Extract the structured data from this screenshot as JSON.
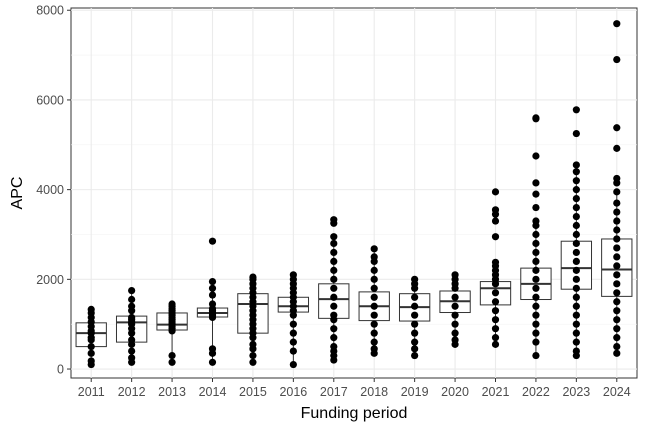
{
  "chart_data": {
    "type": "box",
    "xlabel": "Funding period",
    "ylabel": "APC",
    "ylim": [
      -200,
      8050
    ],
    "yticks": [
      0,
      2000,
      4000,
      6000,
      8000
    ],
    "grid": true,
    "categories": [
      "2011",
      "2012",
      "2013",
      "2014",
      "2015",
      "2016",
      "2017",
      "2018",
      "2019",
      "2020",
      "2021",
      "2022",
      "2023",
      "2024"
    ],
    "boxes": [
      {
        "category": "2011",
        "whisker_low": 100,
        "q1": 500,
        "median": 800,
        "q3": 1030,
        "whisker_high": 1330
      },
      {
        "category": "2012",
        "whisker_low": 150,
        "q1": 600,
        "median": 1040,
        "q3": 1180,
        "whisker_high": 1750
      },
      {
        "category": "2013",
        "whisker_low": 150,
        "q1": 870,
        "median": 990,
        "q3": 1250,
        "whisker_high": 1450
      },
      {
        "category": "2014",
        "whisker_low": 150,
        "q1": 1160,
        "median": 1250,
        "q3": 1360,
        "whisker_high": 1950
      },
      {
        "category": "2015",
        "whisker_low": 150,
        "q1": 800,
        "median": 1450,
        "q3": 1680,
        "whisker_high": 2050
      },
      {
        "category": "2016",
        "whisker_low": 100,
        "q1": 1270,
        "median": 1400,
        "q3": 1600,
        "whisker_high": 2100
      },
      {
        "category": "2017",
        "whisker_low": 200,
        "q1": 1130,
        "median": 1560,
        "q3": 1900,
        "whisker_high": 2950
      },
      {
        "category": "2018",
        "whisker_low": 350,
        "q1": 1080,
        "median": 1400,
        "q3": 1720,
        "whisker_high": 2680
      },
      {
        "category": "2019",
        "whisker_low": 300,
        "q1": 1070,
        "median": 1380,
        "q3": 1680,
        "whisker_high": 2000
      },
      {
        "category": "2020",
        "whisker_low": 550,
        "q1": 1260,
        "median": 1510,
        "q3": 1740,
        "whisker_high": 2100
      },
      {
        "category": "2021",
        "whisker_low": 550,
        "q1": 1430,
        "median": 1800,
        "q3": 1950,
        "whisker_high": 2380
      },
      {
        "category": "2022",
        "whisker_low": 300,
        "q1": 1550,
        "median": 1900,
        "q3": 2250,
        "whisker_high": 3300
      },
      {
        "category": "2023",
        "whisker_low": 300,
        "q1": 1780,
        "median": 2250,
        "q3": 2850,
        "whisker_high": 4400
      },
      {
        "category": "2024",
        "whisker_low": 350,
        "q1": 1620,
        "median": 2220,
        "q3": 2900,
        "whisker_high": 3950
      }
    ],
    "points": [
      {
        "category": "2011",
        "values": [
          100,
          180,
          350,
          500,
          650,
          700,
          800,
          850,
          950,
          1050,
          1150,
          1250,
          1330
        ]
      },
      {
        "category": "2012",
        "values": [
          150,
          250,
          400,
          550,
          650,
          800,
          900,
          1000,
          1050,
          1100,
          1150,
          1300,
          1400,
          1550,
          1750
        ]
      },
      {
        "category": "2013",
        "values": [
          150,
          300,
          850,
          900,
          950,
          1000,
          1050,
          1100,
          1150,
          1200,
          1250,
          1300,
          1350,
          1400,
          1450
        ]
      },
      {
        "category": "2014",
        "values": [
          150,
          350,
          450,
          1150,
          1200,
          1250,
          1300,
          1350,
          1450,
          1650,
          1800,
          1950,
          2850
        ]
      },
      {
        "category": "2015",
        "values": [
          150,
          300,
          450,
          550,
          700,
          800,
          900,
          1000,
          1100,
          1200,
          1300,
          1400,
          1500,
          1600,
          1700,
          1800,
          1900,
          2000,
          2050
        ]
      },
      {
        "category": "2016",
        "values": [
          100,
          400,
          600,
          800,
          1000,
          1200,
          1300,
          1400,
          1500,
          1600,
          1700,
          1800,
          1900,
          2000,
          2100
        ]
      },
      {
        "category": "2017",
        "values": [
          200,
          300,
          400,
          500,
          700,
          900,
          1100,
          1200,
          1400,
          1600,
          1800,
          2000,
          2200,
          2400,
          2600,
          2800,
          2950,
          3250,
          3330
        ]
      },
      {
        "category": "2018",
        "values": [
          350,
          450,
          600,
          800,
          1000,
          1200,
          1400,
          1600,
          1800,
          2000,
          2200,
          2400,
          2500,
          2680
        ]
      },
      {
        "category": "2019",
        "values": [
          300,
          450,
          600,
          800,
          1000,
          1200,
          1400,
          1600,
          1800,
          1900,
          2000
        ]
      },
      {
        "category": "2020",
        "values": [
          550,
          650,
          800,
          1000,
          1200,
          1400,
          1600,
          1800,
          1900,
          2000,
          2100
        ]
      },
      {
        "category": "2021",
        "values": [
          550,
          700,
          900,
          1100,
          1300,
          1500,
          1700,
          1900,
          2000,
          2100,
          2200,
          2300,
          2380,
          2950,
          3300,
          3450,
          3550,
          3950
        ]
      },
      {
        "category": "2022",
        "values": [
          300,
          600,
          800,
          1000,
          1200,
          1400,
          1600,
          1800,
          2000,
          2200,
          2400,
          2600,
          2800,
          3000,
          3200,
          3300,
          3600,
          3900,
          4150,
          4750,
          5580,
          5600
        ]
      },
      {
        "category": "2023",
        "values": [
          300,
          400,
          600,
          800,
          1000,
          1200,
          1400,
          1600,
          1800,
          2000,
          2200,
          2400,
          2600,
          2800,
          3000,
          3200,
          3400,
          3600,
          3800,
          4000,
          4200,
          4400,
          4550,
          5250,
          5780
        ]
      },
      {
        "category": "2024",
        "values": [
          350,
          500,
          700,
          900,
          1100,
          1300,
          1500,
          1700,
          1900,
          2100,
          2300,
          2500,
          2700,
          2900,
          3100,
          3300,
          3500,
          3700,
          3950,
          4150,
          4250,
          4920,
          5380,
          6900,
          7700
        ]
      }
    ]
  }
}
